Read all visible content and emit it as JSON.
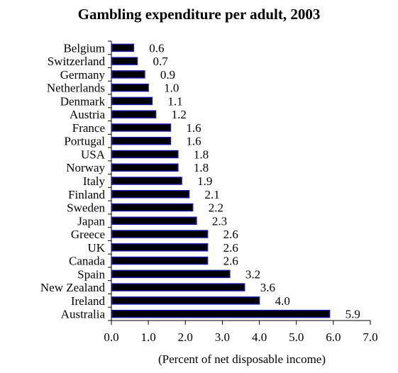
{
  "chart_data": {
    "type": "bar",
    "orientation": "horizontal",
    "title": "Gambling expenditure per adult, 2003",
    "xlabel": "(Percent of net disposable income)",
    "ylabel": "",
    "xlim": [
      0,
      7
    ],
    "xticks": [
      "0.0",
      "1.0",
      "2.0",
      "3.0",
      "4.0",
      "5.0",
      "6.0",
      "7.0"
    ],
    "categories": [
      "Belgium",
      "Switzerland",
      "Germany",
      "Netherlands",
      "Denmark",
      "Austria",
      "France",
      "Portugal",
      "USA",
      "Norway",
      "Italy",
      "Finland",
      "Sweden",
      "Japan",
      "Greece",
      "UK",
      "Canada",
      "Spain",
      "New Zealand",
      "Ireland",
      "Australia"
    ],
    "values": [
      0.6,
      0.7,
      0.9,
      1.0,
      1.1,
      1.2,
      1.6,
      1.6,
      1.8,
      1.8,
      1.9,
      2.1,
      2.2,
      2.3,
      2.6,
      2.6,
      2.6,
      3.2,
      3.6,
      4.0,
      5.9
    ],
    "value_labels": [
      "0.6",
      "0.7",
      "0.9",
      "1.0",
      "1.1",
      "1.2",
      "1.6",
      "1.6",
      "1.8",
      "1.8",
      "1.9",
      "2.1",
      "2.2",
      "2.3",
      "2.6",
      "2.6",
      "2.6",
      "3.2",
      "3.6",
      "4.0",
      "5.9"
    ],
    "grid": false,
    "legend": "none",
    "bar_fill": "#000000",
    "bar_stroke": "#1a1aa6"
  }
}
